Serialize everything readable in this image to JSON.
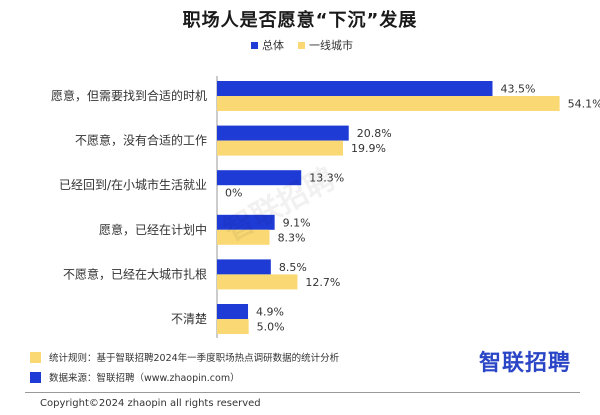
{
  "chart_data": {
    "type": "bar",
    "orientation": "horizontal",
    "title": "职场人是否愿意“下沉”发展",
    "categories": [
      "愿意，但需要找到合适的时机",
      "不愿意，没有合适的工作",
      "已经回到/在小城市生活就业",
      "愿意，已经在计划中",
      "不愿意，已经在大城市扎根",
      "不清楚"
    ],
    "series": [
      {
        "name": "总体",
        "color": "#1f3bd6",
        "values": [
          43.5,
          20.8,
          13.3,
          9.1,
          8.5,
          4.9
        ]
      },
      {
        "name": "一线城市",
        "color": "#fad974",
        "values": [
          54.1,
          19.9,
          0,
          8.3,
          12.7,
          5.0
        ]
      }
    ],
    "data_labels": [
      [
        "43.5%",
        "20.8%",
        "13.3%",
        "9.1%",
        "8.5%",
        "4.9%"
      ],
      [
        "54.1%",
        "19.9%",
        "0%",
        "8.3%",
        "12.7%",
        "5.0%"
      ]
    ],
    "xlim": [
      0,
      60
    ],
    "legend_position": "top",
    "grid": false
  },
  "notes": [
    {
      "label": "统计规则：基于智联招聘2024年一季度职场热点调研数据的统计分析",
      "color": "#fad974"
    },
    {
      "label": "数据来源：智联招聘（www.zhaopin.com）",
      "color": "#1f3bd6"
    }
  ],
  "brand": "智联招聘",
  "copyright": "Copyright©2024 zhaopin all rights reserved",
  "watermark": "智联招聘"
}
